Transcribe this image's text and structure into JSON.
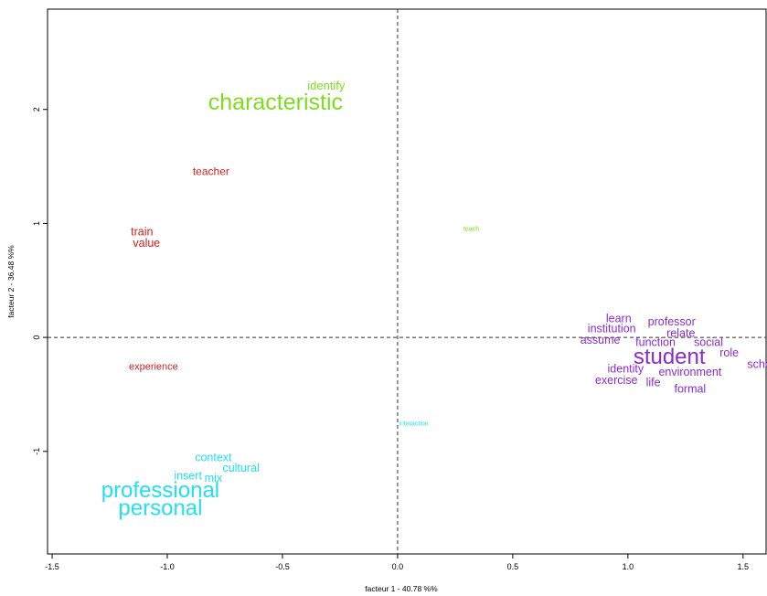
{
  "chart_data": {
    "type": "scatter",
    "xlabel": "facteur  1  - 40.78 %%",
    "ylabel": "facteur 2 - 36.48 %%",
    "xlim": [
      -1.52,
      1.6
    ],
    "ylim": [
      -1.9,
      2.88
    ],
    "x_ticks": [
      -1.5,
      -1.0,
      -0.5,
      0.0,
      0.5,
      1.0,
      1.5
    ],
    "x_tick_labels": [
      "-1.5",
      "-1.0",
      "-0.5",
      "0.0",
      "0.5",
      "1.0",
      "1.5"
    ],
    "y_ticks": [
      -1,
      0,
      1,
      2
    ],
    "y_tick_labels": [
      "-1",
      "0",
      "1",
      "2"
    ],
    "grid": false,
    "reference_lines": {
      "x": 0,
      "y": 0,
      "style": "dashed"
    },
    "colors": {
      "green": "#7fdc1f",
      "red": "#d11f1f",
      "cyan": "#22e0ee",
      "purple": "#8a2bd2"
    },
    "points": [
      {
        "label": "identify",
        "x": -0.31,
        "y": 2.2,
        "color": "green",
        "size": 13
      },
      {
        "label": "characteristic",
        "x": -0.53,
        "y": 2.05,
        "color": "green",
        "size": 25
      },
      {
        "label": "teacher",
        "x": -0.81,
        "y": 1.45,
        "color": "red",
        "size": 12
      },
      {
        "label": "train",
        "x": -1.11,
        "y": 0.92,
        "color": "red",
        "size": 12.5
      },
      {
        "label": "value",
        "x": -1.09,
        "y": 0.82,
        "color": "red",
        "size": 12.5
      },
      {
        "label": "teach",
        "x": 0.32,
        "y": 0.95,
        "color": "green",
        "size": 7
      },
      {
        "label": "experience",
        "x": -1.06,
        "y": -0.26,
        "color": "red",
        "size": 11
      },
      {
        "label": "interaction",
        "x": 0.07,
        "y": -0.76,
        "color": "cyan",
        "size": 7
      },
      {
        "label": "context",
        "x": -0.8,
        "y": -1.06,
        "color": "cyan",
        "size": 12.5
      },
      {
        "label": "cultural",
        "x": -0.68,
        "y": -1.15,
        "color": "cyan",
        "size": 12.5
      },
      {
        "label": "insert",
        "x": -0.91,
        "y": -1.22,
        "color": "cyan",
        "size": 12.5
      },
      {
        "label": "mix",
        "x": -0.8,
        "y": -1.24,
        "color": "cyan",
        "size": 12.5
      },
      {
        "label": "professional",
        "x": -1.03,
        "y": -1.35,
        "color": "cyan",
        "size": 24
      },
      {
        "label": "personal",
        "x": -1.03,
        "y": -1.51,
        "color": "cyan",
        "size": 24
      },
      {
        "label": "learn",
        "x": 0.96,
        "y": 0.16,
        "color": "purple",
        "size": 12.5
      },
      {
        "label": "professor",
        "x": 1.19,
        "y": 0.13,
        "color": "purple",
        "size": 12.5
      },
      {
        "label": "institution",
        "x": 0.93,
        "y": 0.07,
        "color": "purple",
        "size": 12.5
      },
      {
        "label": "relate",
        "x": 1.23,
        "y": 0.03,
        "color": "purple",
        "size": 12.5
      },
      {
        "label": "assume",
        "x": 0.88,
        "y": -0.03,
        "color": "purple",
        "size": 12.5
      },
      {
        "label": "function",
        "x": 1.12,
        "y": -0.05,
        "color": "purple",
        "size": 12.5
      },
      {
        "label": "social",
        "x": 1.35,
        "y": -0.05,
        "color": "purple",
        "size": 12.5
      },
      {
        "label": "student",
        "x": 1.18,
        "y": -0.18,
        "color": "purple",
        "size": 24
      },
      {
        "label": "role",
        "x": 1.44,
        "y": -0.14,
        "color": "purple",
        "size": 12.5
      },
      {
        "label": "school",
        "x": 1.59,
        "y": -0.24,
        "color": "purple",
        "size": 12.5
      },
      {
        "label": "identity",
        "x": 0.99,
        "y": -0.28,
        "color": "purple",
        "size": 12.5
      },
      {
        "label": "environment",
        "x": 1.27,
        "y": -0.31,
        "color": "purple",
        "size": 12.5
      },
      {
        "label": "exercise",
        "x": 0.95,
        "y": -0.38,
        "color": "purple",
        "size": 12.5
      },
      {
        "label": "life",
        "x": 1.11,
        "y": -0.4,
        "color": "purple",
        "size": 12.5
      },
      {
        "label": "formal",
        "x": 1.27,
        "y": -0.46,
        "color": "purple",
        "size": 12.5
      }
    ]
  }
}
